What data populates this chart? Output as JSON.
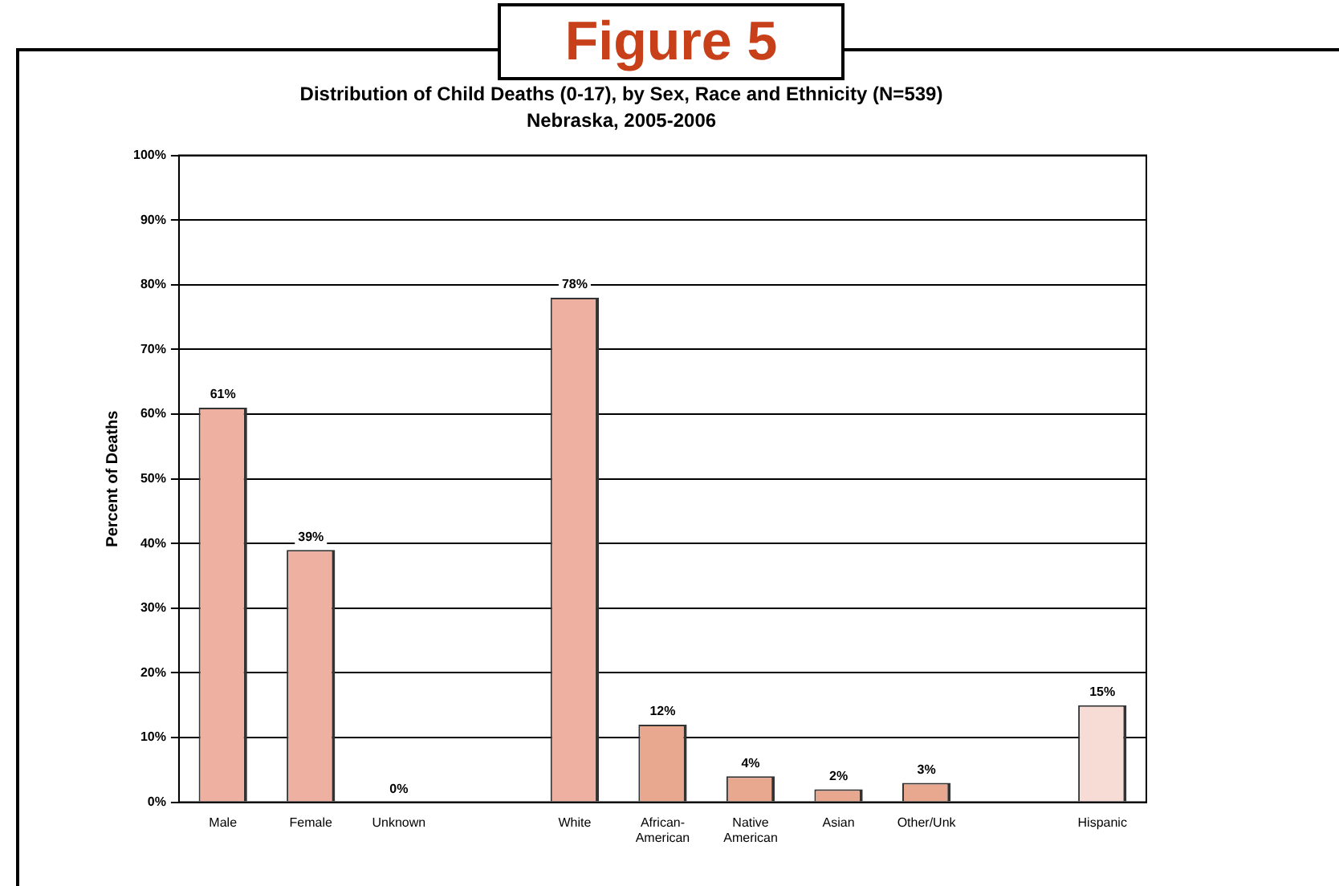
{
  "chart_data": {
    "type": "bar",
    "title": "Distribution of Child Deaths (0-17), by Sex, Race and Ethnicity (N=539)",
    "subtitle": "Nebraska, 2005-2006",
    "ylabel": "Percent of Deaths",
    "annotations": [
      "Figure 5"
    ],
    "categories": [
      "Male",
      "Female",
      "Unknown",
      null,
      "White",
      "African-American",
      "Native American",
      "Asian",
      "Other/Unk",
      null,
      "Hispanic"
    ],
    "values": [
      61,
      39,
      0,
      null,
      78,
      12,
      4,
      2,
      3,
      null,
      15
    ],
    "value_labels": [
      "61%",
      "39%",
      "0%",
      null,
      "78%",
      "12%",
      "4%",
      "2%",
      "3%",
      null,
      "15%"
    ],
    "colors": [
      "#eeb0a0",
      "#eeb0a0",
      "#eeb0a0",
      "#eeb0a0",
      "#eeb0a0",
      "#e8a890",
      "#e8a890",
      "#e8a890",
      "#e8a890",
      "#e8a890",
      "#f6dcd4"
    ],
    "ylim": [
      0,
      100
    ],
    "yticks": [
      {
        "value": 0,
        "label": "0%"
      },
      {
        "value": 10,
        "label": "10%"
      },
      {
        "value": 20,
        "label": "20%"
      },
      {
        "value": 30,
        "label": "30%"
      },
      {
        "value": 40,
        "label": "40%"
      },
      {
        "value": 50,
        "label": "50%"
      },
      {
        "value": 60,
        "label": "60%"
      },
      {
        "value": 70,
        "label": "70%"
      },
      {
        "value": 80,
        "label": "80%"
      },
      {
        "value": 90,
        "label": "90%"
      },
      {
        "value": 100,
        "label": "100%"
      }
    ],
    "grid": "y",
    "legend": false
  }
}
